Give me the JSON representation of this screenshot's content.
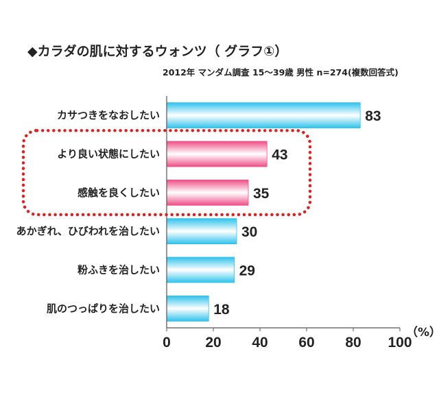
{
  "page": {
    "title": "◆カラダの肌に対するウォンツ（ グラフ①）",
    "subtitle": "2012年 マンダム調査 15～39歳 男性 n=274(複数回答式)",
    "unit_label": "（%）"
  },
  "chart_data": {
    "type": "bar",
    "orientation": "horizontal",
    "categories": [
      "カサつきをなおしたい",
      "より良い状態にしたい",
      "感触を良くしたい",
      "あかぎれ、ひびわれを治したい",
      "粉ふきを治したい",
      "肌のつっぱりを治したい"
    ],
    "values": [
      83,
      43,
      35,
      30,
      29,
      18
    ],
    "xlim": [
      0,
      100
    ],
    "xticks": [
      0,
      20,
      40,
      60,
      80,
      100
    ],
    "grid": false,
    "highlighted_categories": [
      "より良い状態にしたい",
      "感触を良くしたい"
    ],
    "colors": {
      "default_bar": "#2fc2ec",
      "highlight_bar": "#ee4f86",
      "highlight_box": "#e02020"
    }
  }
}
